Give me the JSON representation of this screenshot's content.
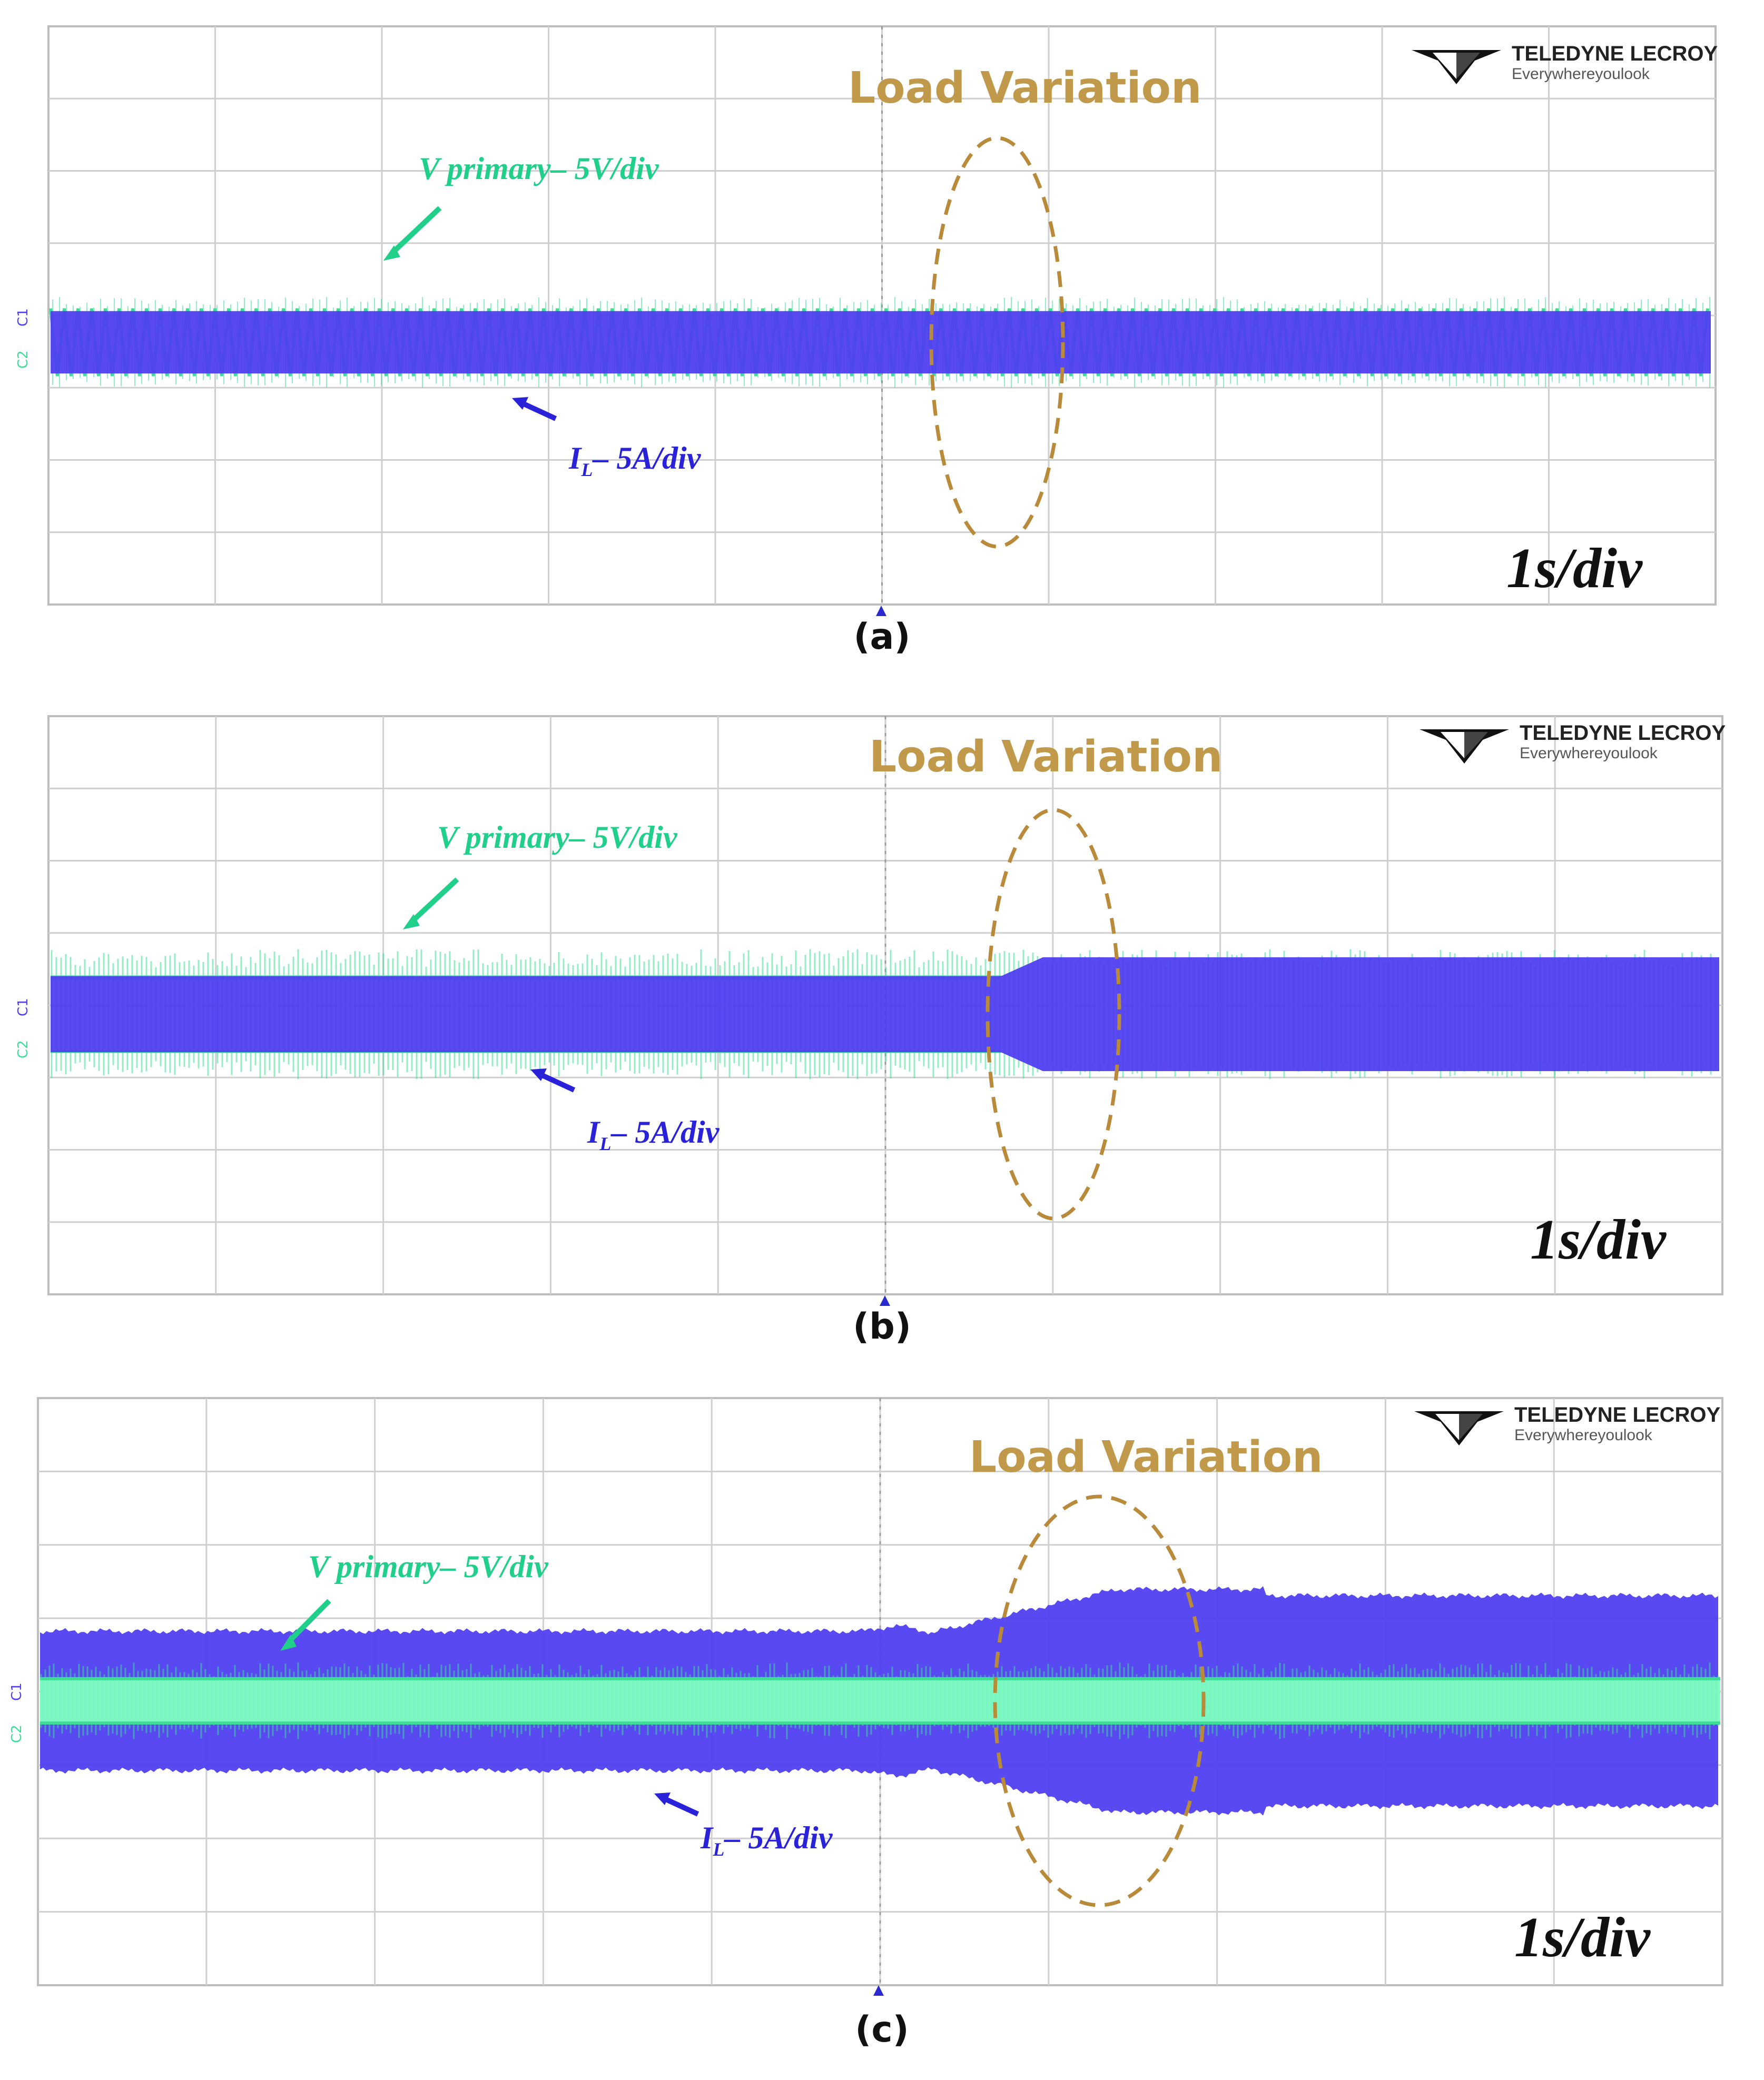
{
  "figures": [
    {
      "id": "a",
      "caption": "(a)",
      "annotation": "Load Variation",
      "v_label": "V primary– 5V/div",
      "i_label_main": "I",
      "i_label_sub": "L",
      "i_label_rest": "– 5A/div",
      "timebase": "1s/div",
      "brand_name": "TELEDYNE LECROY",
      "brand_tag": "Everywhereyoulook"
    },
    {
      "id": "b",
      "caption": "(b)",
      "annotation": "Load Variation",
      "v_label": "V primary– 5V/div",
      "i_label_main": "I",
      "i_label_sub": "L",
      "i_label_rest": "– 5A/div",
      "timebase": "1s/div",
      "brand_name": "TELEDYNE LECROY",
      "brand_tag": "Everywhereyoulook"
    },
    {
      "id": "c",
      "caption": "(c)",
      "annotation": "Load Variation",
      "v_label": "V primary– 5V/div",
      "i_label_main": "I",
      "i_label_sub": "L",
      "i_label_rest": "– 5A/div",
      "timebase": "1s/div",
      "brand_name": "TELEDYNE LECROY",
      "brand_tag": "Everywhereyoulook"
    }
  ],
  "colors": {
    "voltage": "#3ddc97",
    "voltage_fill": "#7dffbf",
    "current": "#4f3ff0",
    "annotation": "#c09a4a",
    "ellipse": "#b88a3a",
    "v_label": "#1fcf8a",
    "i_label": "#2a22d8",
    "grid": "#cfcfcf"
  },
  "chart_data": [
    {
      "type": "line",
      "title": "",
      "xlabel": "",
      "ylabel": "",
      "x_divisions": 10,
      "y_divisions": 8,
      "grid": true,
      "series": [
        {
          "name": "V primary",
          "scale": "5V/div",
          "envelope_before_div": 0.6,
          "envelope_after_div": 0.6
        },
        {
          "name": "I_L",
          "scale": "5A/div",
          "envelope_before_div": 0.6,
          "envelope_after_div": 0.6
        }
      ],
      "load_step_div": 5.5
    },
    {
      "type": "line",
      "title": "",
      "xlabel": "",
      "ylabel": "",
      "x_divisions": 10,
      "y_divisions": 8,
      "grid": true,
      "series": [
        {
          "name": "V primary",
          "scale": "5V/div",
          "envelope_before_div": 0.9,
          "envelope_after_div": 0.9
        },
        {
          "name": "I_L",
          "scale": "5A/div",
          "envelope_before_div": 0.5,
          "envelope_after_div": 0.75
        }
      ],
      "load_step_div": 5.5
    },
    {
      "type": "line",
      "title": "",
      "xlabel": "",
      "ylabel": "",
      "x_divisions": 10,
      "y_divisions": 8,
      "grid": true,
      "series": [
        {
          "name": "V primary",
          "scale": "5V/div",
          "envelope_before_div": 0.55,
          "envelope_after_div": 0.55
        },
        {
          "name": "I_L",
          "scale": "5A/div",
          "envelope_before_div": 1.0,
          "envelope_after_div": 1.6
        }
      ],
      "load_step_div": 6.4
    }
  ]
}
